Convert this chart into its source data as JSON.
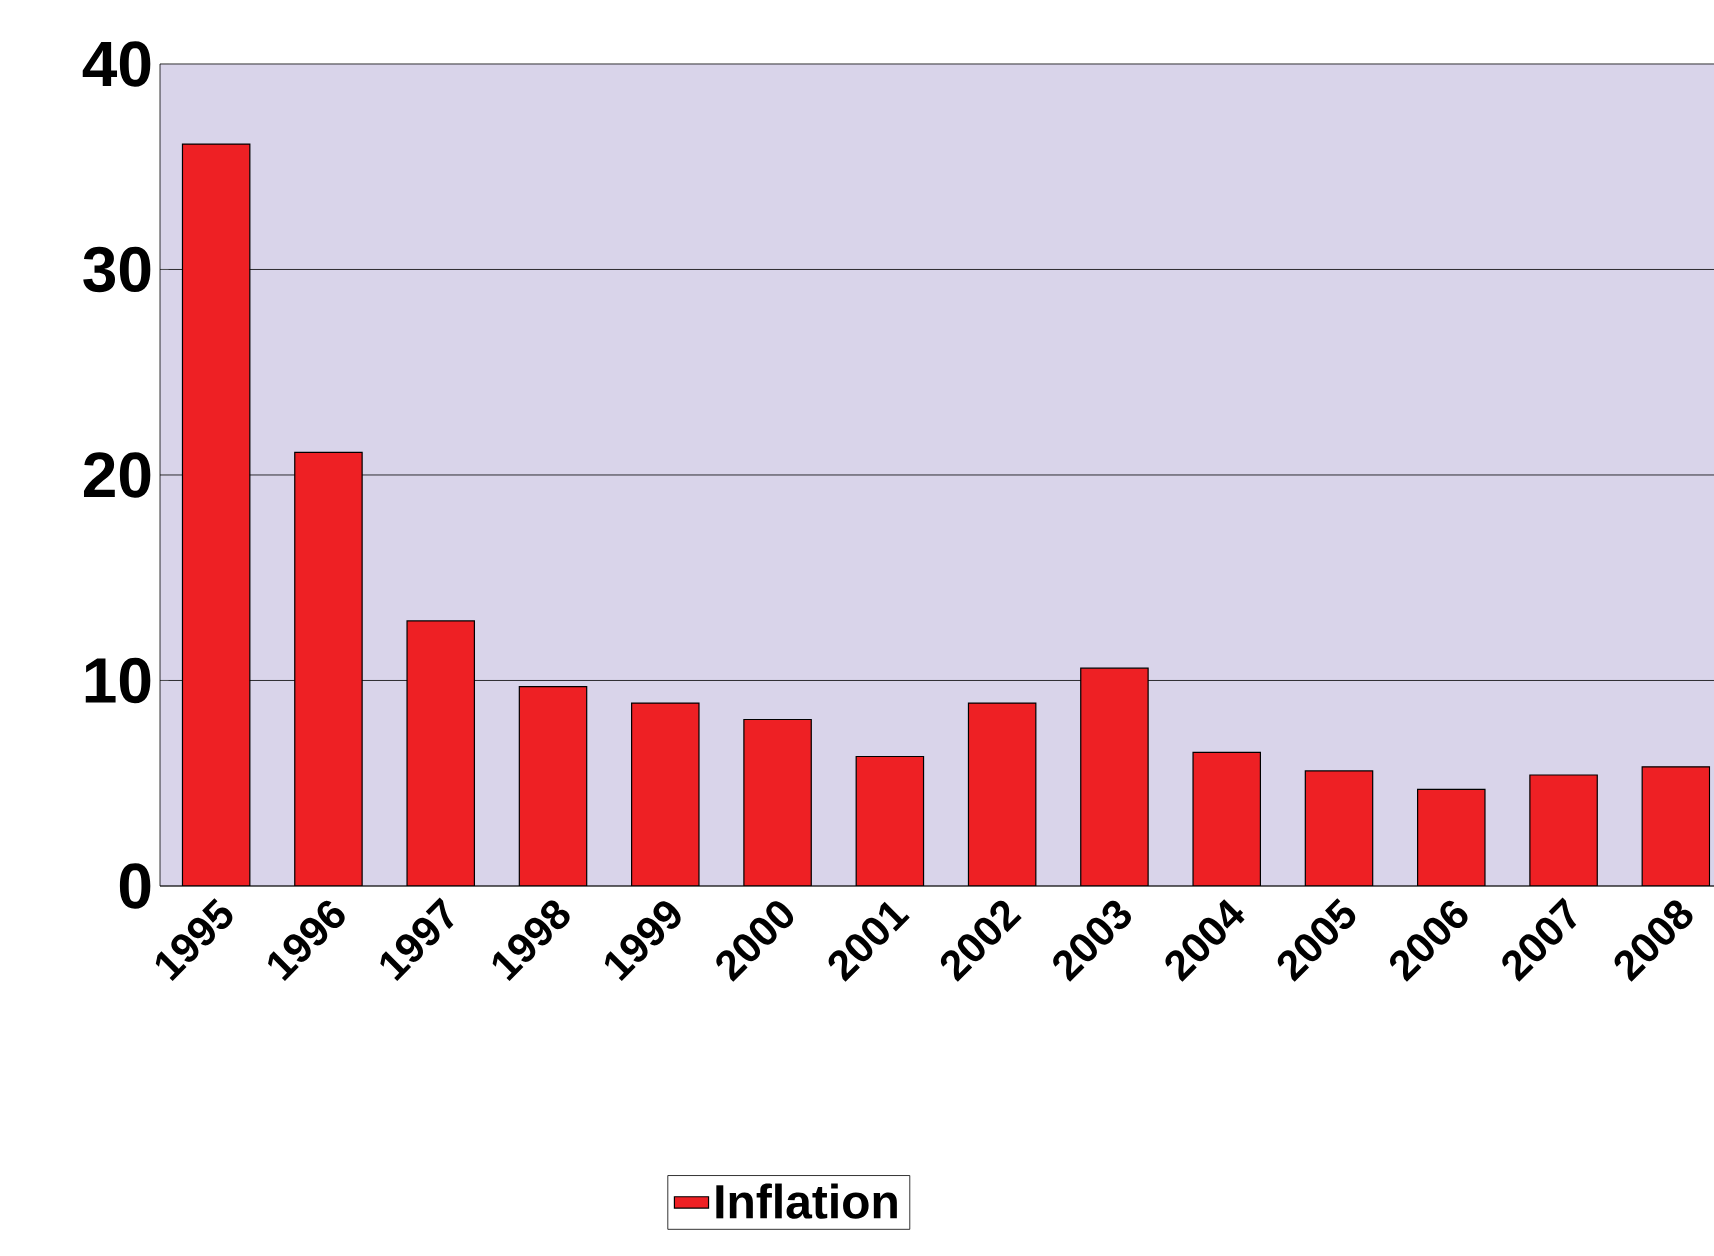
{
  "chart_data": {
    "type": "bar",
    "categories": [
      "1995",
      "1996",
      "1997",
      "1998",
      "1999",
      "2000",
      "2001",
      "2002",
      "2003",
      "2004",
      "2005",
      "2006",
      "2007",
      "2008"
    ],
    "series": [
      {
        "name": "Inflation",
        "color": "#ee2024",
        "values": [
          36.1,
          21.1,
          12.9,
          9.7,
          8.9,
          8.1,
          6.3,
          8.9,
          10.6,
          6.5,
          5.6,
          4.7,
          5.4,
          5.8
        ]
      }
    ],
    "ylim": [
      0,
      40
    ],
    "yticks": [
      0,
      10,
      20,
      30,
      40
    ],
    "grid": "y",
    "legend": "bottom"
  }
}
